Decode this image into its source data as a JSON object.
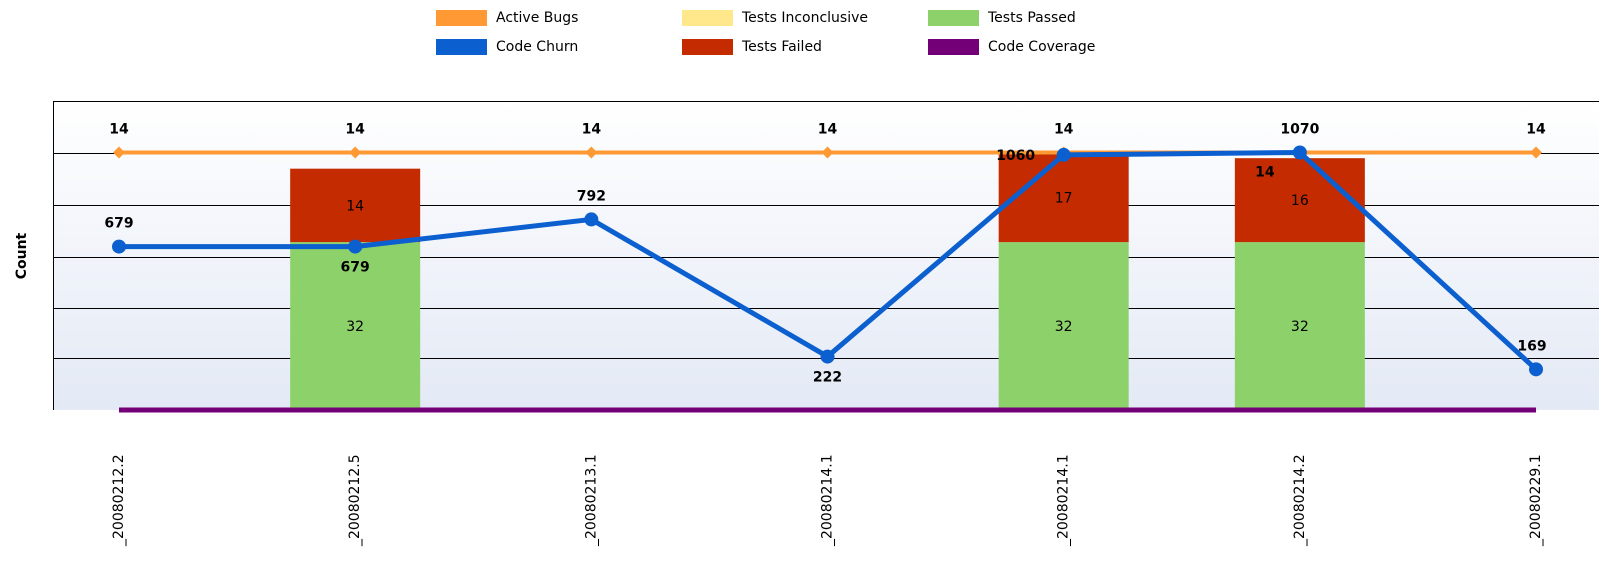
{
  "chart_data": {
    "type": "combo",
    "y_axis_label": "Count",
    "categories": [
      "_20080212.2",
      "_20080212.5",
      "_20080213.1",
      "_20080214.1",
      "_20080214.1",
      "_20080214.2",
      "_20080229.1"
    ],
    "ylim": [
      0,
      58.9
    ],
    "y2lim": [
      0,
      1284
    ],
    "y3lim": [
      0,
      16.8
    ],
    "legend_position": "top",
    "series": [
      {
        "name": "Active Bugs",
        "color": "#ff9933",
        "kind": "line",
        "axis": "y3",
        "values": [
          14,
          14,
          14,
          14,
          14,
          14,
          14
        ]
      },
      {
        "name": "Code Churn",
        "color": "#0b5fcf",
        "kind": "line",
        "axis": "y2",
        "values": [
          679,
          679,
          792,
          222,
          1060,
          1070,
          169
        ]
      },
      {
        "name": "Tests Inconclusive",
        "color": "#ffe88c",
        "kind": "bar",
        "axis": "y",
        "values": [
          null,
          null,
          null,
          null,
          null,
          null,
          null
        ]
      },
      {
        "name": "Tests Failed",
        "color": "#c52b00",
        "kind": "bar",
        "axis": "y",
        "values": [
          null,
          14,
          null,
          null,
          17,
          16,
          null
        ]
      },
      {
        "name": "Tests Passed",
        "color": "#8dd16b",
        "kind": "bar",
        "axis": "y",
        "values": [
          null,
          32,
          null,
          null,
          32,
          32,
          null
        ]
      },
      {
        "name": "Code Coverage",
        "color": "#730076",
        "kind": "line",
        "axis": "y",
        "values": [
          0,
          0,
          0,
          0,
          0,
          0,
          0
        ]
      }
    ]
  }
}
